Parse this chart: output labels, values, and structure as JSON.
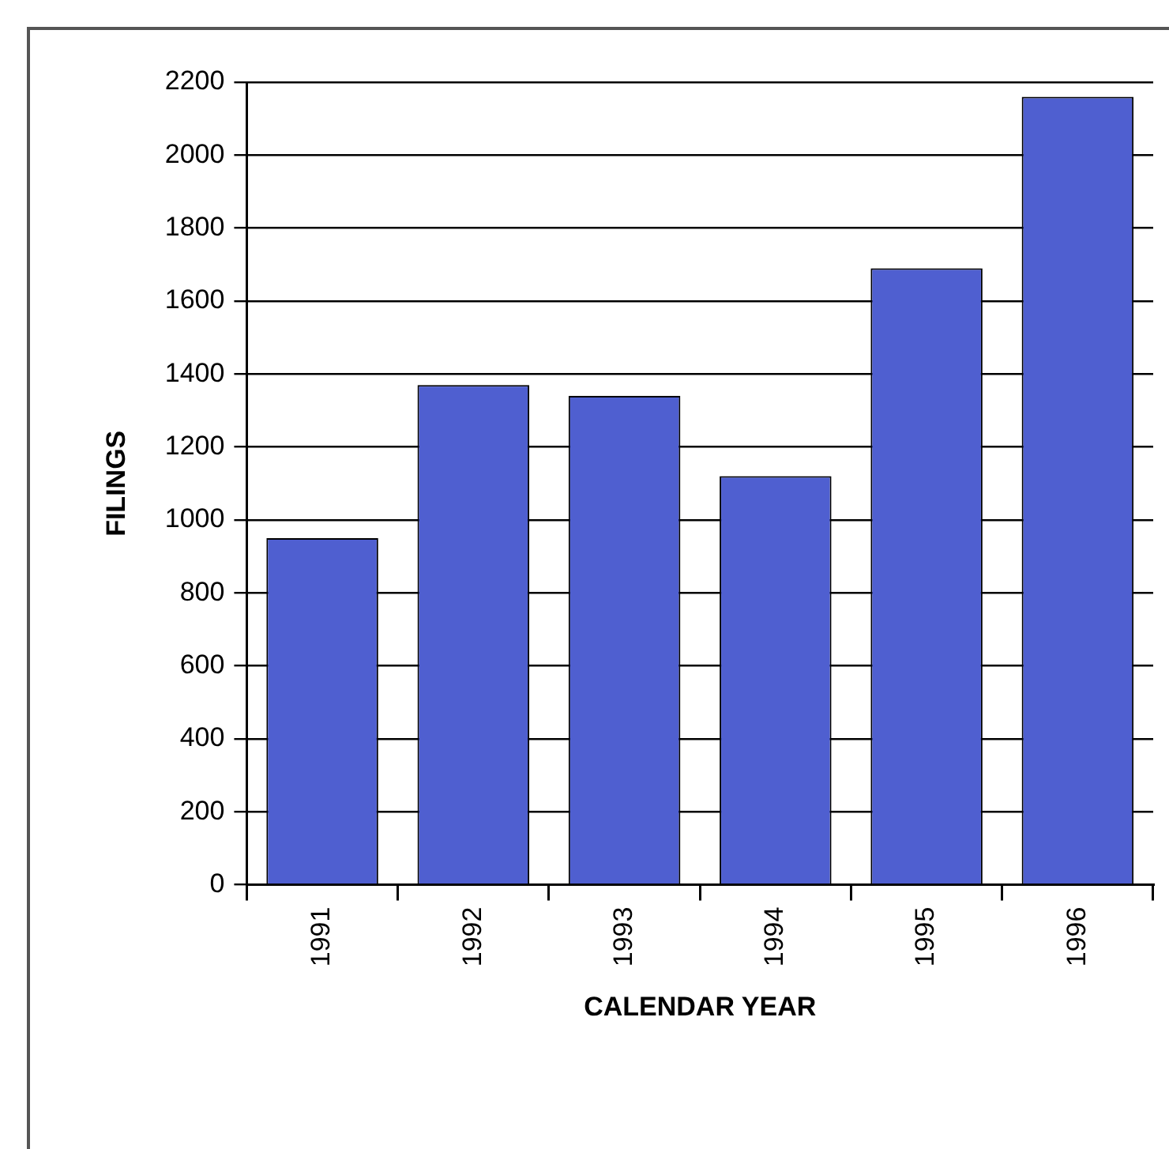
{
  "chart_data": {
    "type": "bar",
    "xlabel": "CALENDAR YEAR",
    "ylabel": "FILINGS",
    "categories": [
      "1991",
      "1992",
      "1993",
      "1994",
      "1995",
      "1996"
    ],
    "values": [
      950,
      1370,
      1340,
      1120,
      1690,
      2160
    ],
    "color": "#4f5fd0",
    "ylim": [
      0,
      2200
    ],
    "yticks": [
      0,
      200,
      400,
      600,
      800,
      1000,
      1200,
      1400,
      1600,
      1800,
      2000,
      2200
    ],
    "grid": "y",
    "legend": false
  }
}
